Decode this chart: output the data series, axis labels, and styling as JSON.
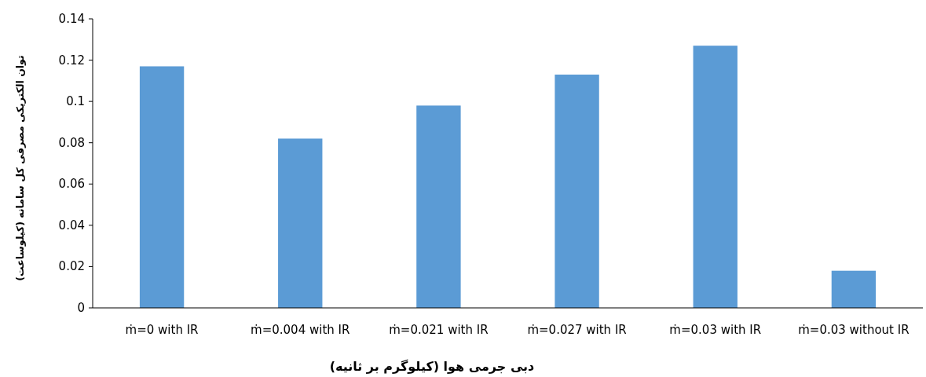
{
  "chart_data": {
    "type": "bar",
    "ylabel": "توان الکتریکی مصرفی کل سامانه (کیلوساعت)",
    "xlabel": "دبی جرمی هوا (کیلوگرم بر ثانیه)",
    "categories": [
      "ṁ=0 with IR",
      "ṁ=0.004 with IR",
      "ṁ=0.021 with IR",
      "ṁ=0.027 with IR",
      "ṁ=0.03 with IR",
      "ṁ=0.03 without IR"
    ],
    "values": [
      0.117,
      0.082,
      0.098,
      0.113,
      0.127,
      0.018
    ],
    "color": "#5b9bd5",
    "ylim": [
      0,
      0.14
    ],
    "yticks": [
      0,
      0.02,
      0.04,
      0.06,
      0.08,
      0.1,
      0.12,
      0.14
    ],
    "grid": false
  }
}
